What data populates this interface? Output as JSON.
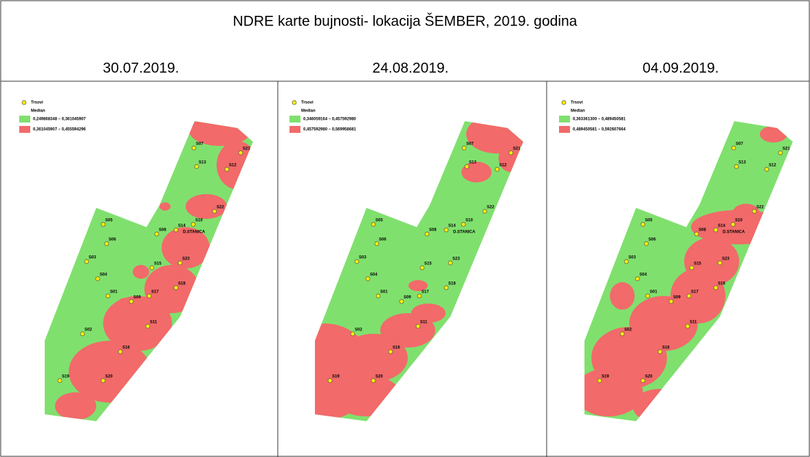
{
  "title": "NDRE karte bujnosti- lokacija ŠEMBER, 2019. godina",
  "legend_point": "Trsovi",
  "legend_heading": "Median",
  "panels": [
    {
      "date": "30.07.2019.",
      "classes": [
        "0,249868348 – 0,361045907",
        "0,361045907 – 0,455594296"
      ]
    },
    {
      "date": "24.08.2019.",
      "classes": [
        "0,346059164 – 0,457592980",
        "0,457592980 – 0,569958681"
      ]
    },
    {
      "date": "04.09.2019.",
      "classes": [
        "0,363361300 – 0,489450581",
        "0,489450581 – 0,592607664"
      ]
    }
  ],
  "point_labels": [
    "S07",
    "S21",
    "S13",
    "S12",
    "S22",
    "S05",
    "S08",
    "S14",
    "S10",
    "S06",
    "S03",
    "S15",
    "S23",
    "S04",
    "S18",
    "S01",
    "S09",
    "S17",
    "S11",
    "S02",
    "S16",
    "S19",
    "S20"
  ],
  "station_label": "D.STANICA"
}
